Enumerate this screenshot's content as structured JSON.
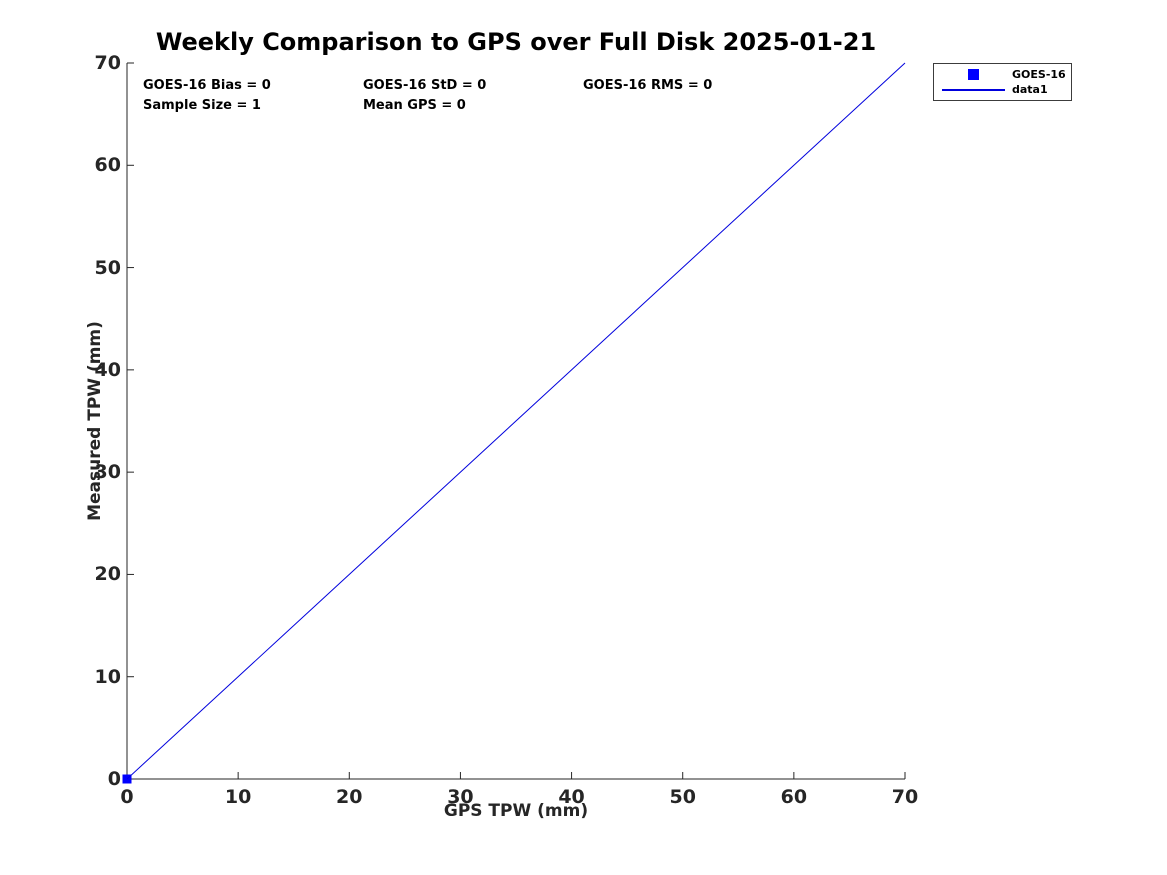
{
  "title": "Weekly Comparison to GPS over Full Disk 2025-01-21",
  "annotations": {
    "bias": "GOES-16 Bias = 0",
    "std": "GOES-16 StD = 0",
    "rms": "GOES-16 RMS = 0",
    "sample_size": "Sample Size = 1",
    "mean_gps": "Mean GPS = 0"
  },
  "legend": {
    "position": "outside-top-right",
    "entries": [
      {
        "label": "GOES-16",
        "swatch": "square-marker",
        "color": "#0000ff"
      },
      {
        "label": "data1",
        "swatch": "line",
        "color": "#0000dd"
      }
    ]
  },
  "chart_data": {
    "type": "scatter",
    "title": "Weekly Comparison to GPS over Full Disk 2025-01-21",
    "xlabel": "GPS TPW (mm)",
    "ylabel": "Measured TPW (mm)",
    "xlim": [
      0,
      70
    ],
    "ylim": [
      0,
      70
    ],
    "xticks": [
      0,
      10,
      20,
      30,
      40,
      50,
      60,
      70
    ],
    "yticks": [
      0,
      10,
      20,
      30,
      40,
      50,
      60,
      70
    ],
    "grid": false,
    "series": [
      {
        "name": "GOES-16",
        "type": "scatter",
        "marker": "square",
        "marker_size": 9,
        "color": "#0000ff",
        "points": [
          [
            0,
            0
          ]
        ]
      },
      {
        "name": "data1",
        "type": "line",
        "color": "#0000dd",
        "line_width": 1,
        "points": [
          [
            0,
            0
          ],
          [
            70,
            70
          ]
        ]
      }
    ],
    "stats": {
      "goes16_bias": 0,
      "goes16_std": 0,
      "goes16_rms": 0,
      "sample_size": 1,
      "mean_gps": 0
    }
  },
  "colors": {
    "axis": "#262626",
    "text": "#000000",
    "background": "#ffffff"
  }
}
